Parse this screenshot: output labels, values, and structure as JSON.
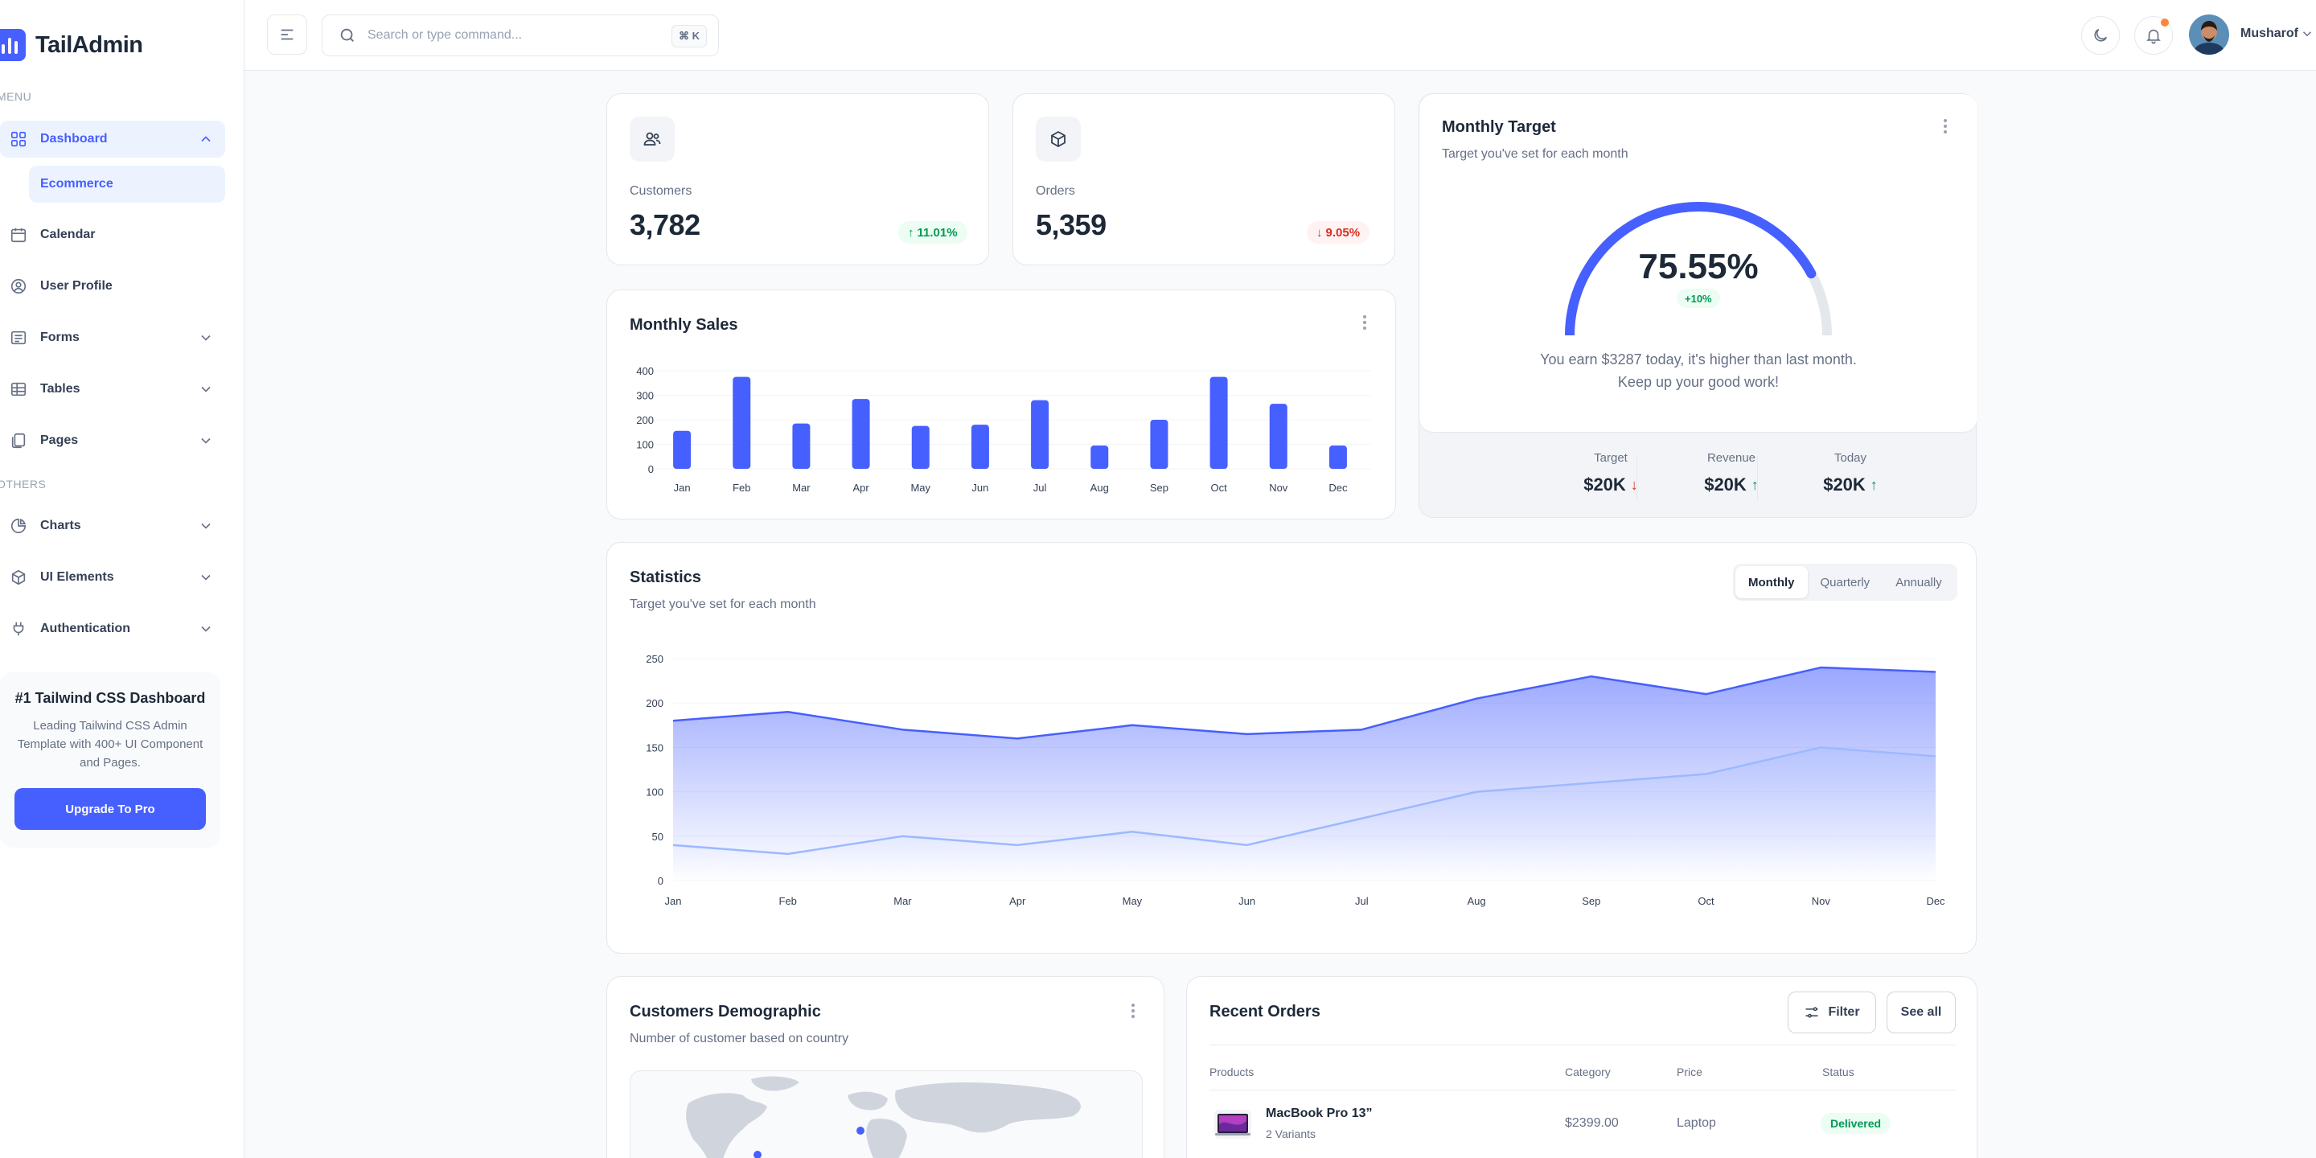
{
  "brand": {
    "name": "TailAdmin",
    "accent": "#465fff"
  },
  "sidebar": {
    "menu_title": "MENU",
    "others_title": "OTHERS",
    "dashboard": {
      "label": "Dashboard",
      "sub_items": [
        "Ecommerce"
      ]
    },
    "menu_items": [
      {
        "label": "Calendar",
        "icon": "calendar-icon"
      },
      {
        "label": "User Profile",
        "icon": "user-circle-icon"
      },
      {
        "label": "Forms",
        "icon": "list-icon"
      },
      {
        "label": "Tables",
        "icon": "table-icon"
      },
      {
        "label": "Pages",
        "icon": "pages-icon"
      }
    ],
    "others_items": [
      {
        "label": "Charts",
        "icon": "pie-chart-icon"
      },
      {
        "label": "UI Elements",
        "icon": "box-icon"
      },
      {
        "label": "Authentication",
        "icon": "plug-icon"
      }
    ],
    "promo": {
      "title": "#1 Tailwind CSS Dashboard",
      "description": "Leading Tailwind CSS Admin Template with 400+ UI Component and Pages.",
      "button": "Upgrade To Pro"
    }
  },
  "header": {
    "search_placeholder": "Search or type command...",
    "search_shortcut": "⌘ K",
    "user_name": "Musharof"
  },
  "metrics": {
    "customers": {
      "label": "Customers",
      "value": "3,782",
      "change": "11.01%",
      "direction": "up"
    },
    "orders": {
      "label": "Orders",
      "value": "5,359",
      "change": "9.05%",
      "direction": "down"
    }
  },
  "monthly_sales": {
    "title": "Monthly Sales"
  },
  "monthly_target": {
    "title": "Monthly Target",
    "subtitle": "Target you've set for each month",
    "percent": "75.55%",
    "percent_value": 75.55,
    "badge": "+10%",
    "message_line1": "You earn $3287 today, it's higher than last month.",
    "message_line2": "Keep up your good work!",
    "stats": [
      {
        "label": "Target",
        "value": "$20K",
        "direction": "down"
      },
      {
        "label": "Revenue",
        "value": "$20K",
        "direction": "up"
      },
      {
        "label": "Today",
        "value": "$20K",
        "direction": "up"
      }
    ]
  },
  "statistics": {
    "title": "Statistics",
    "subtitle": "Target you've set for each month",
    "tabs": [
      "Monthly",
      "Quarterly",
      "Annually"
    ],
    "selected_tab": "Monthly"
  },
  "demographic": {
    "title": "Customers Demographic",
    "subtitle": "Number of customer based on country"
  },
  "recent_orders": {
    "title": "Recent Orders",
    "filter_label": "Filter",
    "see_all_label": "See all",
    "columns": [
      "Products",
      "Category",
      "Price",
      "Status"
    ],
    "rows": [
      {
        "product": "MacBook Pro 13”",
        "variants": "2 Variants",
        "category": "Laptop",
        "price": "$2399.00",
        "status": "Delivered"
      }
    ]
  },
  "chart_data": [
    {
      "type": "bar",
      "title": "Monthly Sales",
      "categories": [
        "Jan",
        "Feb",
        "Mar",
        "Apr",
        "May",
        "Jun",
        "Jul",
        "Aug",
        "Sep",
        "Oct",
        "Nov",
        "Dec"
      ],
      "values": [
        155,
        375,
        185,
        285,
        175,
        180,
        280,
        95,
        200,
        375,
        265,
        95
      ],
      "ylim": [
        0,
        400
      ],
      "yticks": [
        0,
        100,
        200,
        300,
        400
      ],
      "color": "#465fff",
      "grid": true
    },
    {
      "type": "area",
      "title": "Statistics",
      "categories": [
        "Jan",
        "Feb",
        "Mar",
        "Apr",
        "May",
        "Jun",
        "Jul",
        "Aug",
        "Sep",
        "Oct",
        "Nov",
        "Dec"
      ],
      "series": [
        {
          "values": [
            180,
            190,
            170,
            160,
            175,
            165,
            170,
            205,
            230,
            210,
            240,
            235
          ],
          "color": "#465fff"
        },
        {
          "values": [
            40,
            30,
            50,
            40,
            55,
            40,
            70,
            100,
            110,
            120,
            150,
            140
          ],
          "color": "#9cb9ff"
        }
      ],
      "ylim": [
        0,
        250
      ],
      "yticks": [
        0,
        50,
        100,
        150,
        200,
        250
      ],
      "grid": true
    }
  ]
}
